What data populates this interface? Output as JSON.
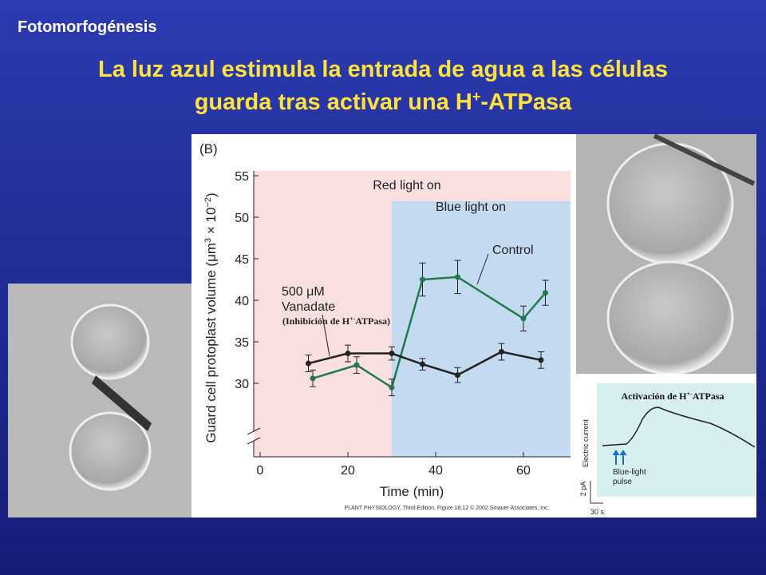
{
  "slide": {
    "header": "Fotomorfogénesis",
    "title": {
      "line1": "La luz azul estimula la entrada de agua a las células",
      "line2_before": "guarda tras activar una H",
      "line2_sup": "+",
      "line2_after": "-ATPasa"
    },
    "inset": {
      "caption_before": "Activación de H",
      "caption_sup": "+-",
      "caption_after": "ATPasa",
      "y_label": "Electric current",
      "pulse_label_1": "Blue-light",
      "pulse_label_2": "pulse",
      "scale_y": "2 pA",
      "scale_x": "30 s"
    }
  },
  "chart_data": {
    "type": "line",
    "panel_label": "(B)",
    "x_label": "Time (min)",
    "y_label": {
      "before": "Guard cell protoplast volume (μm",
      "sup1": "3",
      "middle": " × 10",
      "sup2": "−2",
      "after": ")"
    },
    "credit": "PLANT PHYSIOLOGY, Third Edition, Figure 18.12 © 2002 Sinauer Associates, Inc.",
    "xlim": [
      0,
      70
    ],
    "xticks": [
      0,
      20,
      40,
      60
    ],
    "ylim": [
      25,
      55
    ],
    "yticks": [
      30,
      35,
      40,
      45,
      50,
      55
    ],
    "shaded_regions": [
      {
        "label": "Red light on",
        "x": [
          0,
          70
        ],
        "color": "#f9dfe0"
      },
      {
        "label": "Blue light on",
        "x": [
          30,
          70
        ],
        "color": "#c3daf0"
      }
    ],
    "annotations": {
      "vanadate_1": "500 μM",
      "vanadate_2": "Vanadate",
      "inhibition_before": "(Inhibición de H",
      "inhibition_sup": "+-",
      "inhibition_after": "ATPasa)"
    },
    "series": [
      {
        "name": "Control",
        "color": "#1f7a4d",
        "x": [
          12,
          22,
          30,
          37,
          45,
          60,
          65
        ],
        "values": [
          30.6,
          32.2,
          29.5,
          42.5,
          42.8,
          37.8,
          40.9
        ],
        "errors": [
          1,
          1,
          1,
          2,
          2,
          1.5,
          1.5
        ]
      },
      {
        "name": "500 μM Vanadate",
        "color": "#222222",
        "x": [
          11,
          20,
          30,
          37,
          45,
          55,
          64
        ],
        "values": [
          32.4,
          33.6,
          33.6,
          32.3,
          31,
          33.8,
          32.8
        ],
        "errors": [
          1,
          1,
          0.8,
          0.7,
          0.9,
          1,
          1
        ]
      }
    ]
  }
}
